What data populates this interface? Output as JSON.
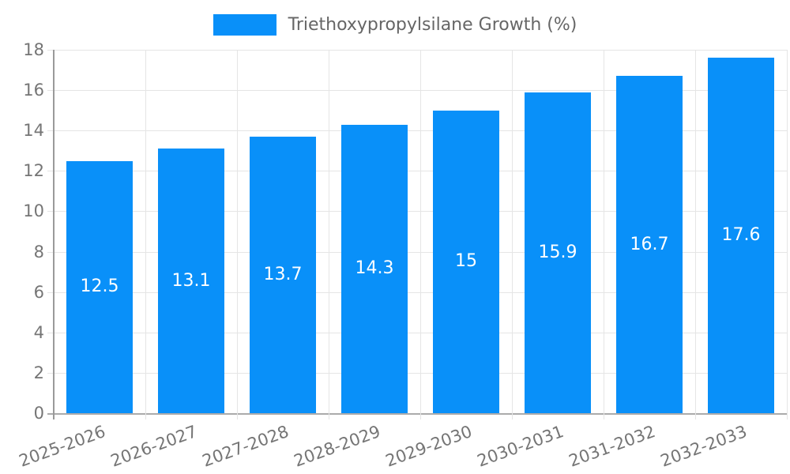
{
  "chart_data": {
    "type": "bar",
    "legend": "Triethoxypropylsilane Growth (%)",
    "legend_position": "top",
    "categories": [
      "2025-2026",
      "2026-2027",
      "2027-2028",
      "2028-2029",
      "2029-2030",
      "2030-2031",
      "2031-2032",
      "2032-2033"
    ],
    "values": [
      12.5,
      13.1,
      13.7,
      14.3,
      15,
      15.9,
      16.7,
      17.6
    ],
    "value_labels": [
      "12.5",
      "13.1",
      "13.7",
      "14.3",
      "15",
      "15.9",
      "16.7",
      "17.6"
    ],
    "title": "",
    "xlabel": "",
    "ylabel": "",
    "ylim": [
      0,
      18
    ],
    "ytick_step": 2,
    "yticks": [
      "0",
      "2",
      "4",
      "6",
      "8",
      "10",
      "12",
      "14",
      "16",
      "18"
    ],
    "grid": true,
    "colors": {
      "bar": "#0990F9",
      "bar_label": "#FFFFFF",
      "grid": "#E5E5E5",
      "axis_line": "#9A9A9A",
      "tick_text": "#757575",
      "legend_text": "#666666",
      "background": "#FFFFFF"
    }
  }
}
